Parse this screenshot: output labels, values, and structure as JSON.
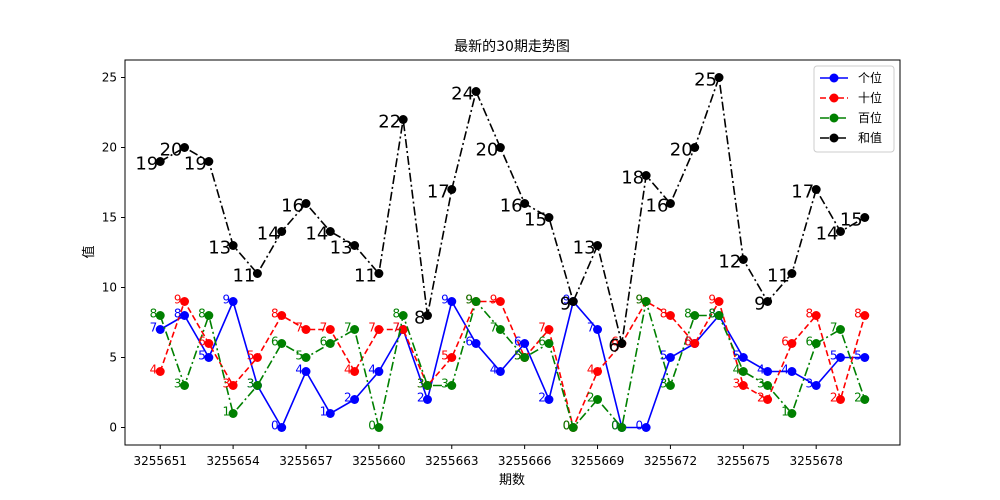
{
  "chart_data": {
    "type": "line",
    "title": "最新的30期走势图",
    "xlabel": "期数",
    "ylabel": "值",
    "xlim": [
      3255649.55,
      3255681.45
    ],
    "ylim": [
      -1.25,
      26.25
    ],
    "x_ticks": [
      3255651,
      3255654,
      3255657,
      3255660,
      3255663,
      3255666,
      3255669,
      3255672,
      3255675,
      3255678
    ],
    "x_tick_labels": [
      "3255651",
      "3255654",
      "3255657",
      "3255660",
      "3255663",
      "3255666",
      "3255669",
      "3255672",
      "3255675",
      "3255678"
    ],
    "y_ticks": [
      0,
      5,
      10,
      15,
      20,
      25
    ],
    "y_tick_labels": [
      "0",
      "5",
      "10",
      "15",
      "20",
      "25"
    ],
    "x": [
      3255651,
      3255652,
      3255653,
      3255654,
      3255655,
      3255656,
      3255657,
      3255658,
      3255659,
      3255660,
      3255661,
      3255662,
      3255663,
      3255664,
      3255665,
      3255666,
      3255667,
      3255668,
      3255669,
      3255670,
      3255671,
      3255672,
      3255673,
      3255674,
      3255675,
      3255676,
      3255677,
      3255678,
      3255679,
      3255680
    ],
    "legend_position": "top-right",
    "grid": false,
    "series": [
      {
        "name": "个位",
        "color": "#0000ff",
        "dash": "solid",
        "values": [
          7,
          8,
          5,
          9,
          3,
          0,
          4,
          1,
          2,
          4,
          7,
          2,
          9,
          6,
          4,
          6,
          2,
          9,
          7,
          0,
          0,
          5,
          6,
          8,
          5,
          4,
          4,
          3,
          5,
          5
        ]
      },
      {
        "name": "十位",
        "color": "#ff0000",
        "dash": "dashed",
        "values": [
          4,
          9,
          6,
          3,
          5,
          8,
          7,
          7,
          4,
          7,
          7,
          3,
          5,
          9,
          9,
          5,
          7,
          0,
          4,
          6,
          9,
          8,
          6,
          9,
          3,
          2,
          6,
          8,
          2,
          8
        ]
      },
      {
        "name": "百位",
        "color": "#008000",
        "dash": "dashdot",
        "values": [
          8,
          3,
          8,
          1,
          3,
          6,
          5,
          6,
          7,
          0,
          8,
          3,
          3,
          9,
          7,
          5,
          6,
          0,
          2,
          0,
          9,
          3,
          8,
          8,
          4,
          3,
          1,
          6,
          7,
          2
        ]
      },
      {
        "name": "和值",
        "color": "#000000",
        "dash": "dashdot",
        "values": [
          19,
          20,
          19,
          13,
          11,
          14,
          16,
          14,
          13,
          11,
          22,
          8,
          17,
          24,
          20,
          16,
          15,
          9,
          13,
          6,
          18,
          16,
          20,
          25,
          12,
          9,
          11,
          17,
          14,
          15
        ]
      }
    ]
  }
}
